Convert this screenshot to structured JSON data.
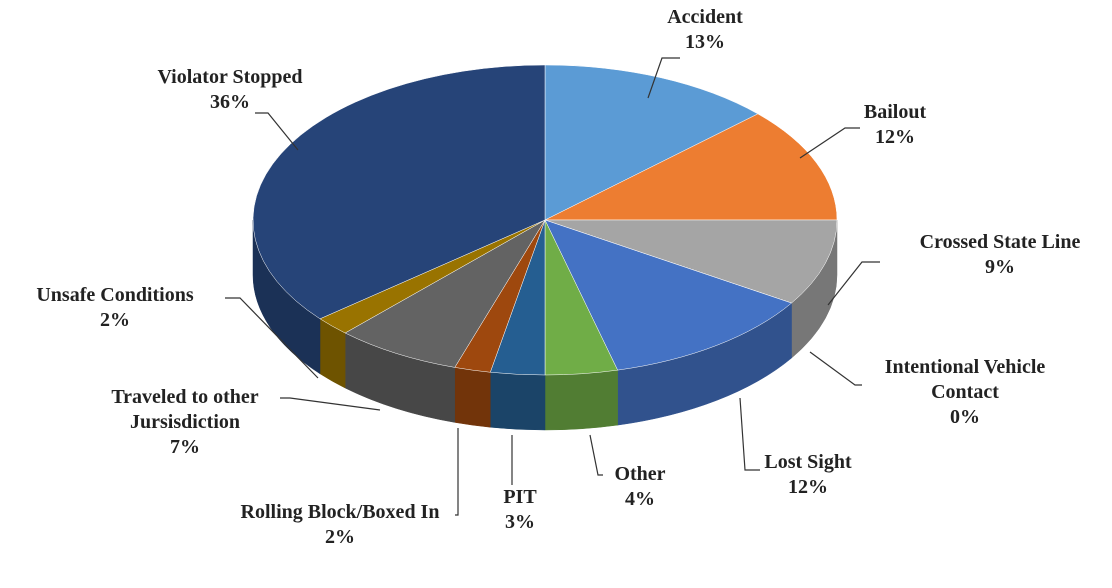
{
  "chart_data": {
    "type": "pie",
    "categories": [
      "Accident",
      "Bailout",
      "Crossed State Line",
      "Intentional Vehicle Contact",
      "Lost Sight",
      "Other",
      "PIT",
      "Rolling Block/Boxed In",
      "Traveled to other Jursisdiction",
      "Unsafe Conditions",
      "Violator Stopped"
    ],
    "values": [
      13,
      12,
      9,
      0,
      12,
      4,
      3,
      2,
      7,
      2,
      36
    ],
    "value_labels": [
      "13%",
      "12%",
      "9%",
      "0%",
      "12%",
      "4%",
      "3%",
      "2%",
      "7%",
      "2%",
      "36%"
    ],
    "colors": [
      "#5b9bd5",
      "#ed7d31",
      "#a5a5a5",
      "#ffc000",
      "#4472c4",
      "#70ad47",
      "#255e91",
      "#9e480e",
      "#636363",
      "#997300",
      "#264478"
    ]
  }
}
